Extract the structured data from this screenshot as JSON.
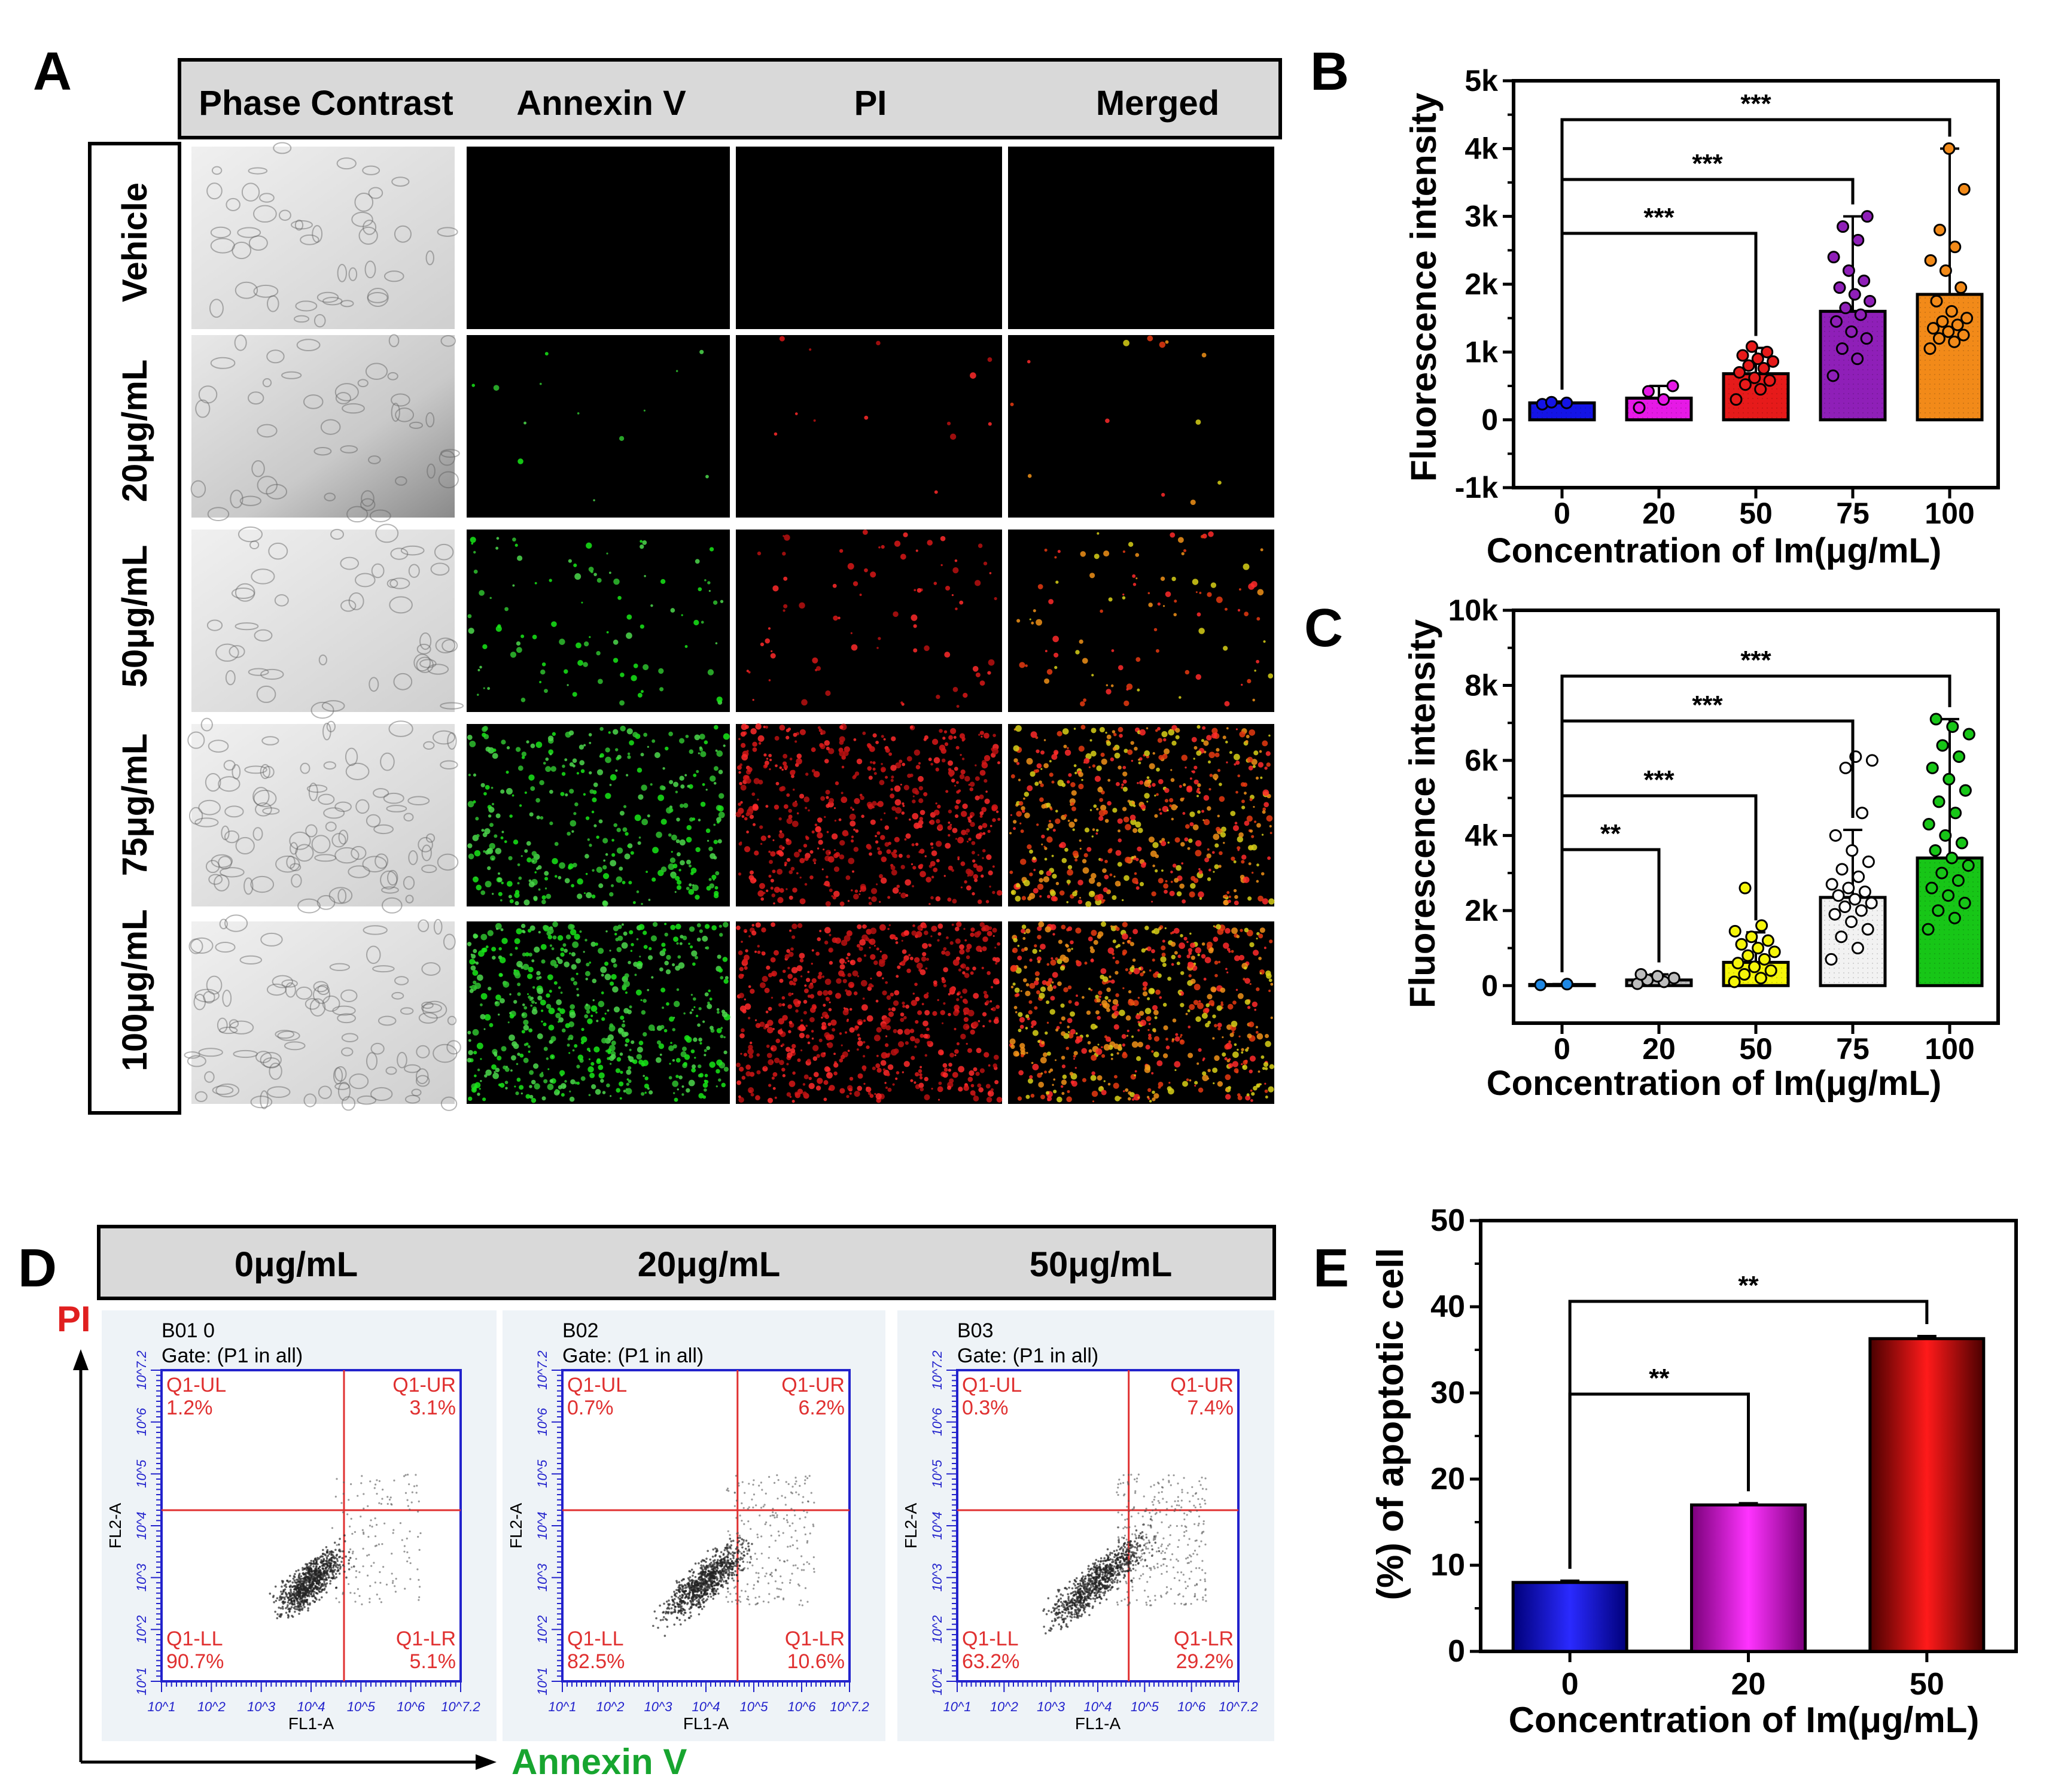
{
  "colors": {
    "panel_a_header_bg": "#d9d9d9",
    "vehicle_bar": "#1414e6",
    "im20_bar": "#e619e6",
    "im50_bar": "#e61a1a",
    "im75_bar": "#8f1fb8",
    "im100_bar": "#f28a19",
    "c0_bar": "#1e88e5",
    "c20_bar": "#bdbdbd",
    "c50_bar": "#f5f50a",
    "c75_bar": "#f2f2f2",
    "c100_bar": "#17c617",
    "flow_axis": "#2222cc",
    "flow_gate": "#e03030",
    "annexin_green": "#17a52f",
    "pi_red": "#e02020"
  },
  "panel_a": {
    "letter": "A",
    "columns": [
      "Phase Contrast",
      "Annexin V",
      "PI",
      "Merged"
    ],
    "rows": [
      "Vehicle",
      "20μg/mL",
      "50μg/mL",
      "75μg/mL",
      "100μg/mL"
    ],
    "signal_levels": {
      "annexin": [
        0,
        0.02,
        0.15,
        0.55,
        0.9
      ],
      "pi": [
        0,
        0.02,
        0.12,
        0.85,
        1.0
      ]
    }
  },
  "panel_b": {
    "letter": "B",
    "chart_data": {
      "type": "bar",
      "categories": [
        "0",
        "20",
        "50",
        "75",
        "100"
      ],
      "values": [
        250,
        320,
        680,
        1600,
        1850
      ],
      "errors": [
        20,
        180,
        380,
        1400,
        2150
      ],
      "points": [
        [
          230,
          250,
          260
        ],
        [
          180,
          300,
          420,
          500
        ],
        [
          300,
          450,
          520,
          580,
          620,
          700,
          760,
          800,
          860,
          900,
          950,
          1000,
          1080
        ],
        [
          650,
          900,
          1050,
          1200,
          1300,
          1450,
          1550,
          1650,
          1750,
          1850,
          1950,
          2050,
          2200,
          2400,
          2650,
          2850,
          3000
        ],
        [
          1050,
          1150,
          1200,
          1250,
          1300,
          1350,
          1400,
          1450,
          1500,
          1600,
          1750,
          1950,
          2200,
          2350,
          2550,
          2800,
          3400,
          4000
        ]
      ],
      "ylim": [
        -1000,
        5000
      ],
      "yticks": [
        "-1k",
        "0",
        "1k",
        "2k",
        "3k",
        "4k",
        "5k"
      ],
      "ylabel": "Fluorescence intensity",
      "xlabel": "Concentration of Im(μg/mL)",
      "significance": [
        {
          "from": "0",
          "to": "50",
          "label": "***"
        },
        {
          "from": "0",
          "to": "75",
          "label": "***"
        },
        {
          "from": "0",
          "to": "100",
          "label": "***"
        }
      ]
    }
  },
  "panel_c": {
    "letter": "C",
    "chart_data": {
      "type": "bar",
      "categories": [
        "0",
        "20",
        "50",
        "75",
        "100"
      ],
      "values": [
        30,
        150,
        620,
        2350,
        3400
      ],
      "errors": [
        10,
        150,
        800,
        1800,
        3700
      ],
      "points": [
        [
          20,
          40
        ],
        [
          50,
          100,
          150,
          200,
          250,
          300
        ],
        [
          100,
          200,
          300,
          400,
          500,
          600,
          700,
          800,
          900,
          1000,
          1100,
          1200,
          1300,
          1450,
          1600,
          2600
        ],
        [
          700,
          1000,
          1300,
          1500,
          1700,
          1900,
          2000,
          2100,
          2200,
          2300,
          2400,
          2500,
          2600,
          2700,
          2900,
          3100,
          3300,
          3600,
          4000,
          4600,
          5800,
          6000,
          6100
        ],
        [
          1500,
          1800,
          2000,
          2200,
          2400,
          2600,
          2800,
          3000,
          3200,
          3400,
          3600,
          3800,
          4000,
          4300,
          4600,
          4900,
          5200,
          5500,
          5800,
          6100,
          6400,
          6700,
          6900,
          7100
        ]
      ],
      "ylim": [
        -1000,
        10000
      ],
      "yticks": [
        "0",
        "2k",
        "4k",
        "6k",
        "8k",
        "10k"
      ],
      "ylabel": "Fluorescence intensity",
      "xlabel": "Concentration of Im(μg/mL)",
      "significance": [
        {
          "from": "0",
          "to": "20",
          "label": "**"
        },
        {
          "from": "0",
          "to": "50",
          "label": "***"
        },
        {
          "from": "0",
          "to": "75",
          "label": "***"
        },
        {
          "from": "0",
          "to": "100",
          "label": "***"
        }
      ]
    }
  },
  "panel_d": {
    "letter": "D",
    "header": [
      "0μg/mL",
      "20μg/mL",
      "50μg/mL"
    ],
    "y_axis_label": "PI",
    "x_axis_label": "Annexin V",
    "plot_xlabel": "FL1-A",
    "plot_ylabel": "FL2-A",
    "tick_labels": [
      "10^1",
      "10^2",
      "10^3",
      "10^4",
      "10^5",
      "10^6",
      "10^7.2"
    ],
    "plots": [
      {
        "sample": "B01 0",
        "gate": "Gate: (P1 in all)",
        "quadrants": {
          "UL": [
            "Q1-UL",
            "1.2%"
          ],
          "UR": [
            "Q1-UR",
            "3.1%"
          ],
          "LL": [
            "Q1-LL",
            "90.7%"
          ],
          "LR": [
            "Q1-LR",
            "5.1%"
          ]
        }
      },
      {
        "sample": "B02",
        "gate": "Gate: (P1 in all)",
        "quadrants": {
          "UL": [
            "Q1-UL",
            "0.7%"
          ],
          "UR": [
            "Q1-UR",
            "6.2%"
          ],
          "LL": [
            "Q1-LL",
            "82.5%"
          ],
          "LR": [
            "Q1-LR",
            "10.6%"
          ]
        }
      },
      {
        "sample": "B03",
        "gate": "Gate: (P1 in all)",
        "quadrants": {
          "UL": [
            "Q1-UL",
            "0.3%"
          ],
          "UR": [
            "Q1-UR",
            "7.4%"
          ],
          "LL": [
            "Q1-LL",
            "63.2%"
          ],
          "LR": [
            "Q1-LR",
            "29.2%"
          ]
        }
      }
    ]
  },
  "panel_e": {
    "letter": "E",
    "chart_data": {
      "type": "bar",
      "categories": [
        "0",
        "20",
        "50"
      ],
      "values": [
        8,
        17,
        36.3
      ],
      "errors": [
        0.2,
        0.2,
        0.3
      ],
      "ylim": [
        0,
        50
      ],
      "yticks": [
        "0",
        "10",
        "20",
        "30",
        "40",
        "50"
      ],
      "ylabel": "(%) of apoptotic cell",
      "xlabel": "Concentration of Im(μg/mL)",
      "significance": [
        {
          "from": "0",
          "to": "20",
          "label": "**"
        },
        {
          "from": "0",
          "to": "50",
          "label": "**"
        }
      ]
    }
  }
}
